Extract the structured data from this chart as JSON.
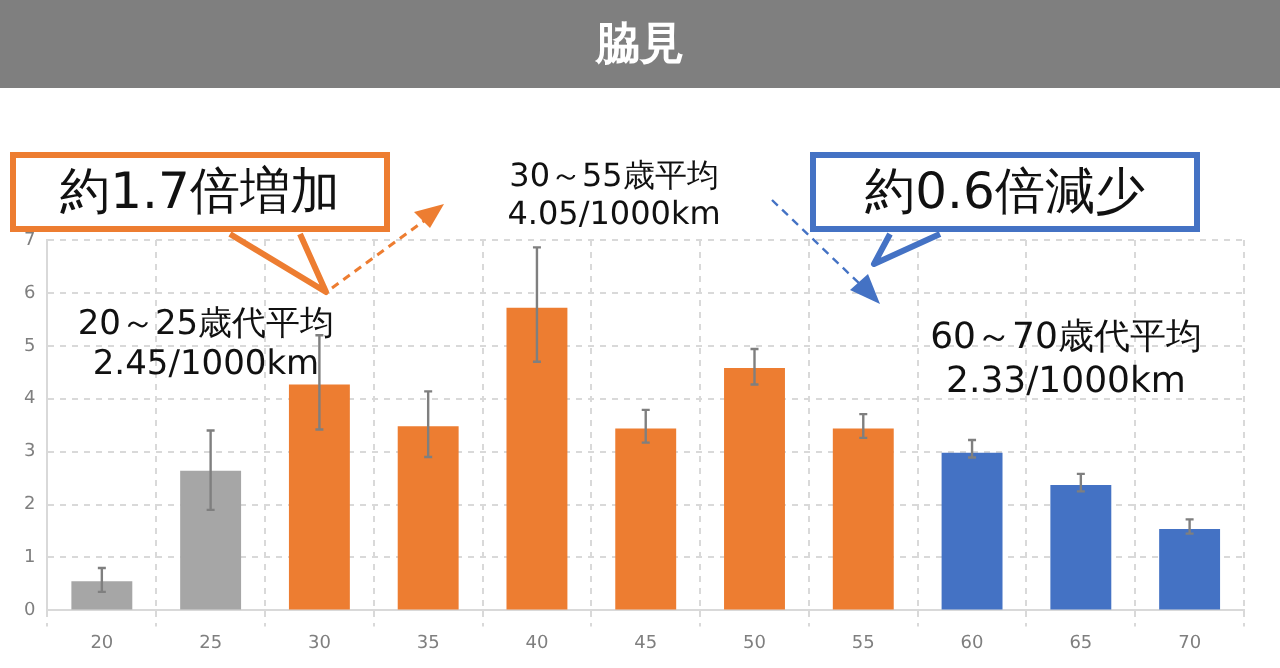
{
  "chart_data": {
    "type": "bar",
    "title": "脇見",
    "categories": [
      "20",
      "25",
      "30",
      "35",
      "40",
      "45",
      "50",
      "55",
      "60",
      "65",
      "70"
    ],
    "values": [
      0.55,
      2.64,
      4.27,
      3.48,
      5.72,
      3.44,
      4.58,
      3.44,
      2.98,
      2.37,
      1.54
    ],
    "colors": [
      "#a6a6a6",
      "#a6a6a6",
      "#ed7d31",
      "#ed7d31",
      "#ed7d31",
      "#ed7d31",
      "#ed7d31",
      "#ed7d31",
      "#4472c4",
      "#4472c4",
      "#4472c4"
    ],
    "errors": [
      [
        0.35,
        0.8
      ],
      [
        1.9,
        3.4
      ],
      [
        3.42,
        5.2
      ],
      [
        2.9,
        4.14
      ],
      [
        4.7,
        6.86
      ],
      [
        3.17,
        3.79
      ],
      [
        4.27,
        4.94
      ],
      [
        3.26,
        3.71
      ],
      [
        2.89,
        3.22
      ],
      [
        2.25,
        2.58
      ],
      [
        1.45,
        1.72
      ]
    ],
    "ylim": [
      0,
      7
    ],
    "yticks": [
      0,
      1,
      2,
      3,
      4,
      5,
      6,
      7
    ],
    "grid": true,
    "annotations": [
      "約1.7倍増加",
      "30～55歳平均\n4.05/1000km",
      "約0.6倍減少",
      "20～25歳代平均\n2.45/1000km",
      "60～70歳代平均\n2.33/1000km"
    ]
  }
}
